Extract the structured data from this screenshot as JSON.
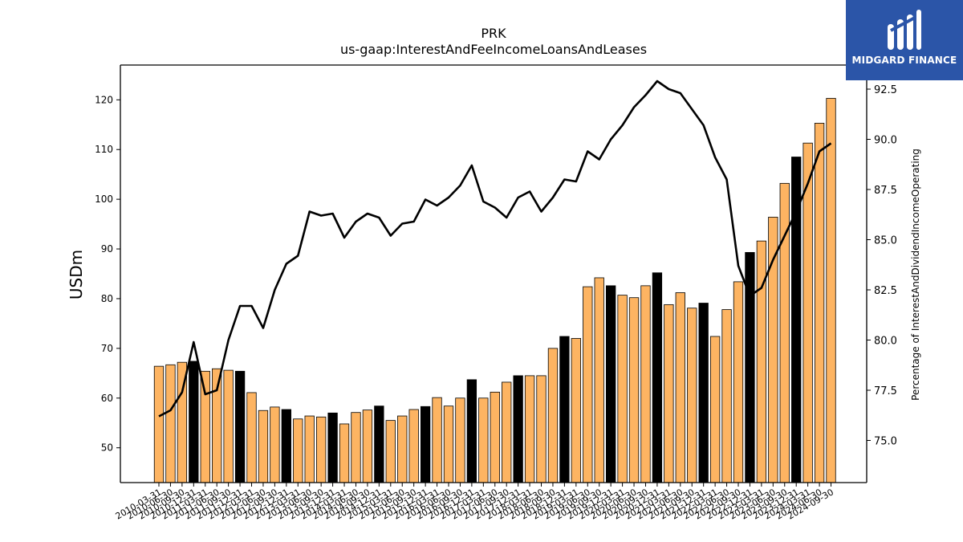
{
  "logo": {
    "text": "MIDGARD FINANCE",
    "mark_icon": "midgard-logo-icon"
  },
  "chart_data": {
    "type": "bar",
    "title": "PRK",
    "subtitle": "us-gaap:InterestAndFeeIncomeLoansAndLeases",
    "ylabel": "USDm",
    "y2label": "Percentage of InterestAndDividendIncomeOperating",
    "ylim": [
      43,
      127
    ],
    "y2lim": [
      72.9,
      93.7
    ],
    "yticks": [
      50,
      60,
      70,
      80,
      90,
      100,
      110,
      120
    ],
    "y2ticks": [
      "75.0",
      "77.5",
      "80.0",
      "82.5",
      "85.0",
      "87.5",
      "90.0",
      "92.5"
    ],
    "grid": false,
    "colors": {
      "bar": "#fdb462",
      "bar_q4": "#000000",
      "line": "#000000"
    },
    "categories": [
      "2010-03-31",
      "2010-06-30",
      "2010-09-30",
      "2010-12-31",
      "2011-03-31",
      "2011-06-30",
      "2011-09-30",
      "2011-12-31",
      "2012-03-31",
      "2012-06-30",
      "2012-09-30",
      "2012-12-31",
      "2013-03-31",
      "2013-06-30",
      "2013-09-30",
      "2013-12-31",
      "2014-03-31",
      "2014-06-30",
      "2014-09-30",
      "2014-12-31",
      "2015-03-31",
      "2015-06-30",
      "2015-09-30",
      "2015-12-31",
      "2016-03-31",
      "2016-06-30",
      "2016-09-30",
      "2016-12-31",
      "2017-03-31",
      "2017-06-30",
      "2017-09-30",
      "2017-12-31",
      "2018-03-31",
      "2018-06-30",
      "2018-09-30",
      "2018-12-31",
      "2019-03-31",
      "2019-06-30",
      "2019-09-30",
      "2019-12-31",
      "2020-03-31",
      "2020-06-30",
      "2020-09-30",
      "2020-12-31",
      "2021-03-31",
      "2021-06-30",
      "2021-09-30",
      "2021-12-31",
      "2022-03-31",
      "2022-06-30",
      "2022-09-30",
      "2022-12-31",
      "2023-03-31",
      "2023-06-30",
      "2023-09-30",
      "2023-12-31",
      "2024-03-31",
      "2024-06-30",
      "2024-09-30"
    ],
    "series": [
      {
        "values": [
          66.4,
          66.7,
          67.2,
          67.4,
          65.4,
          65.9,
          65.6,
          65.4,
          61.1,
          57.5,
          58.2,
          57.7,
          55.8,
          56.4,
          56.2,
          57.0,
          54.8,
          57.1,
          57.6,
          58.4,
          55.5,
          56.4,
          57.7,
          58.3,
          60.1,
          58.4,
          60.0,
          63.7,
          60.0,
          61.2,
          63.2,
          64.5,
          64.5,
          64.5,
          70.0,
          72.4,
          72.0,
          82.4,
          84.2,
          82.6,
          80.7,
          80.2,
          82.6,
          85.2,
          78.8,
          81.2,
          78.1,
          79.1,
          72.4,
          77.8,
          83.4,
          89.3,
          91.6,
          96.4,
          103.2,
          108.5,
          111.3,
          115.3,
          120.3
        ]
      },
      {
        "values": [
          76.2,
          76.5,
          77.4,
          79.9,
          77.3,
          77.5,
          80.0,
          81.7,
          81.7,
          80.6,
          82.5,
          83.8,
          84.2,
          86.4,
          86.2,
          86.3,
          85.1,
          85.9,
          86.3,
          86.1,
          85.2,
          85.8,
          85.9,
          87.0,
          86.7,
          87.1,
          87.7,
          88.7,
          86.9,
          86.6,
          86.1,
          87.1,
          87.4,
          86.4,
          87.1,
          88.0,
          87.9,
          89.4,
          89.0,
          90.0,
          90.7,
          91.6,
          92.2,
          92.9,
          92.5,
          92.3,
          91.5,
          90.7,
          89.1,
          88.0,
          83.7,
          82.2,
          82.6,
          84.0,
          85.2,
          86.4,
          87.8,
          89.4,
          89.8
        ]
      }
    ]
  }
}
